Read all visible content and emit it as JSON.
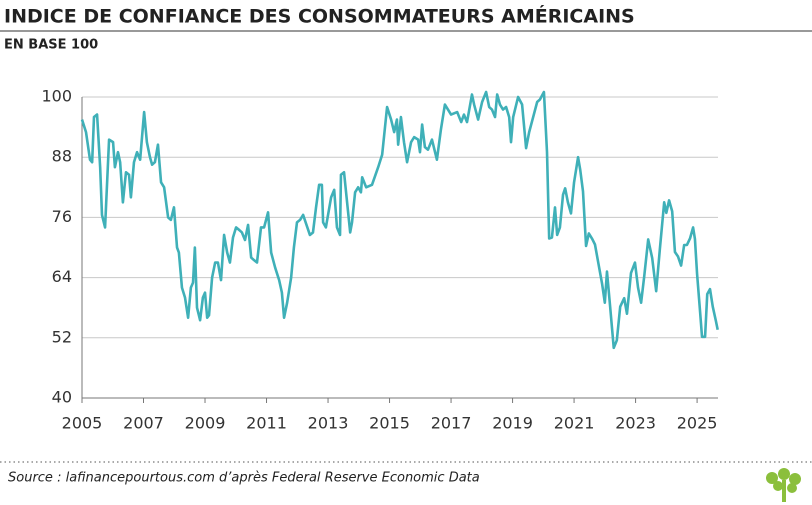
{
  "chart_data": {
    "type": "line",
    "title": "INDICE DE CONFIANCE DES CONSOMMATEURS AMÉRICAINS",
    "subtitle": "EN BASE 100",
    "source": "Source : lafinancepourtous.com d’après Federal Reserve Economic Data",
    "color": "#3fb0b8",
    "grid": true,
    "xlim": [
      2005,
      2025.68
    ],
    "xticks": [
      2005,
      2007,
      2009,
      2011,
      2013,
      2015,
      2017,
      2019,
      2021,
      2023,
      2025
    ],
    "ylim": [
      40,
      100
    ],
    "yticks": [
      40,
      52,
      64,
      76,
      88,
      100
    ],
    "x": [
      2005.0,
      2005.13,
      2005.26,
      2005.33,
      2005.39,
      2005.49,
      2005.59,
      2005.65,
      2005.75,
      2005.88,
      2006.01,
      2006.07,
      2006.17,
      2006.24,
      2006.33,
      2006.43,
      2006.53,
      2006.59,
      2006.69,
      2006.79,
      2006.89,
      2007.02,
      2007.11,
      2007.21,
      2007.28,
      2007.37,
      2007.47,
      2007.57,
      2007.67,
      2007.8,
      2007.89,
      2007.99,
      2008.09,
      2008.15,
      2008.25,
      2008.35,
      2008.45,
      2008.54,
      2008.61,
      2008.67,
      2008.74,
      2008.84,
      2008.93,
      2009.0,
      2009.07,
      2009.13,
      2009.23,
      2009.33,
      2009.42,
      2009.52,
      2009.62,
      2009.72,
      2009.81,
      2009.91,
      2010.01,
      2010.11,
      2010.2,
      2010.3,
      2010.4,
      2010.5,
      2010.59,
      2010.69,
      2010.82,
      2010.92,
      2011.05,
      2011.15,
      2011.28,
      2011.41,
      2011.5,
      2011.57,
      2011.67,
      2011.8,
      2011.89,
      2011.99,
      2012.09,
      2012.19,
      2012.41,
      2012.51,
      2012.61,
      2012.71,
      2012.8,
      2012.84,
      2012.93,
      2013.1,
      2013.2,
      2013.29,
      2013.39,
      2013.42,
      2013.52,
      2013.62,
      2013.72,
      2013.78,
      2013.88,
      2013.98,
      2014.07,
      2014.11,
      2014.24,
      2014.43,
      2014.63,
      2014.76,
      2014.92,
      2015.05,
      2015.15,
      2015.24,
      2015.28,
      2015.37,
      2015.47,
      2015.57,
      2015.7,
      2015.8,
      2015.93,
      2015.99,
      2016.06,
      2016.15,
      2016.25,
      2016.38,
      2016.54,
      2016.67,
      2016.8,
      2017.0,
      2017.2,
      2017.33,
      2017.42,
      2017.52,
      2017.68,
      2017.75,
      2017.88,
      2018.01,
      2018.14,
      2018.24,
      2018.33,
      2018.43,
      2018.5,
      2018.59,
      2018.69,
      2018.79,
      2018.89,
      2018.95,
      2019.02,
      2019.18,
      2019.31,
      2019.44,
      2019.54,
      2019.67,
      2019.8,
      2019.89,
      2020.02,
      2020.12,
      2020.19,
      2020.28,
      2020.38,
      2020.45,
      2020.54,
      2020.64,
      2020.71,
      2020.8,
      2020.9,
      2021.0,
      2021.13,
      2021.2,
      2021.29,
      2021.39,
      2021.48,
      2021.59,
      2021.68,
      2021.78,
      2021.91,
      2022.0,
      2022.07,
      2022.17,
      2022.29,
      2022.39,
      2022.5,
      2022.63,
      2022.72,
      2022.85,
      2022.98,
      2023.08,
      2023.18,
      2023.28,
      2023.41,
      2023.54,
      2023.67,
      2023.79,
      2023.93,
      2024.0,
      2024.09,
      2024.19,
      2024.28,
      2024.38,
      2024.48,
      2024.58,
      2024.67,
      2024.77,
      2024.87,
      2024.93,
      2025.0,
      2025.1,
      2025.16,
      2025.26,
      2025.33,
      2025.42,
      2025.51,
      2025.61,
      2025.67
    ],
    "values": [
      95.5,
      93,
      87.5,
      87,
      96,
      96.5,
      86,
      76.5,
      74,
      91.5,
      91,
      86,
      89,
      87,
      79,
      85,
      84.5,
      80,
      87,
      89,
      87.5,
      97,
      91,
      88,
      86.5,
      87,
      90.5,
      83,
      82,
      76,
      75.5,
      78,
      70,
      69,
      62,
      60,
      56,
      62,
      63,
      70,
      58,
      55.5,
      60,
      61,
      56,
      56.5,
      64,
      67,
      67,
      63.5,
      72.5,
      69,
      67,
      72,
      74,
      73.5,
      73,
      71.5,
      74.5,
      68,
      67.5,
      67,
      74,
      74,
      77,
      69,
      66,
      63.5,
      61,
      56,
      59,
      64,
      70,
      75,
      75.5,
      76.5,
      72.5,
      73,
      78,
      82.5,
      82.5,
      75,
      74,
      80,
      81.5,
      74,
      72.5,
      84.5,
      85,
      79,
      73,
      75,
      81,
      82,
      81,
      84,
      82,
      82.5,
      86,
      88.5,
      98,
      95.5,
      93,
      95.5,
      90.5,
      96,
      91,
      87,
      91,
      92,
      91.5,
      89,
      94.5,
      90,
      89.5,
      91.5,
      87.5,
      93.5,
      98.5,
      96.5,
      97,
      95,
      96.5,
      95,
      100.5,
      98.5,
      95.5,
      99,
      101,
      98,
      97.5,
      96,
      100.5,
      98.5,
      97.5,
      98,
      96,
      91,
      96,
      100,
      98.5,
      89.8,
      93,
      96,
      99,
      99.5,
      101,
      89,
      71.8,
      72,
      78,
      72.5,
      74,
      80.5,
      81.8,
      79,
      76.8,
      83,
      88,
      85.5,
      81.2,
      70.3,
      72.8,
      71.7,
      70.6,
      67.2,
      62.8,
      59,
      65.2,
      58.4,
      50,
      51.5,
      58.2,
      59.9,
      56.8,
      64.9,
      67,
      62,
      59,
      64.2,
      71.6,
      67.9,
      61.3,
      69.7,
      79,
      76.9,
      79.4,
      77.2,
      69.1,
      68.2,
      66.4,
      70.5,
      70.5,
      71.8,
      74,
      71.7,
      64.7,
      57,
      52.2,
      52.2,
      60.7,
      61.7,
      58.2,
      55.4,
      53.6
    ]
  }
}
